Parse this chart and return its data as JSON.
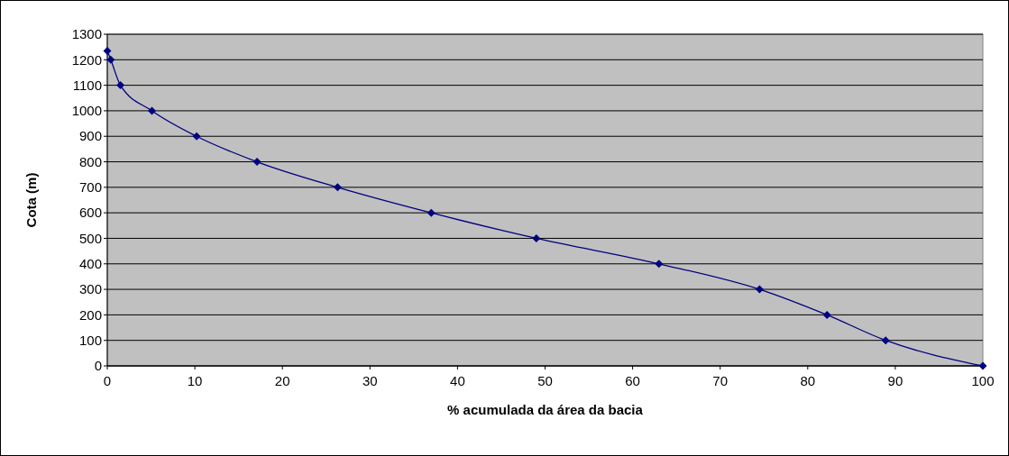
{
  "chart_data": {
    "type": "line",
    "xlabel": "% acumulada da área da bacia",
    "ylabel": "Cota (m)",
    "x": [
      0,
      0.4,
      1.5,
      5.1,
      10.2,
      17.1,
      26.3,
      37.0,
      49.0,
      63.0,
      74.5,
      82.2,
      88.9,
      100
    ],
    "series": [
      {
        "color": "#000080",
        "values": [
          1235,
          1200,
          1100,
          1000,
          900,
          800,
          700,
          600,
          500,
          400,
          300,
          200,
          100,
          0
        ]
      }
    ],
    "xlim": [
      0,
      100
    ],
    "xticks": [
      0,
      10,
      20,
      30,
      40,
      50,
      60,
      70,
      80,
      90,
      100
    ],
    "ylim": [
      0,
      1300
    ],
    "yticks": [
      0,
      100,
      200,
      300,
      400,
      500,
      600,
      700,
      800,
      900,
      1000,
      1100,
      1200,
      1300
    ],
    "grid": "y",
    "marker": "diamond",
    "line_style": "solid"
  }
}
